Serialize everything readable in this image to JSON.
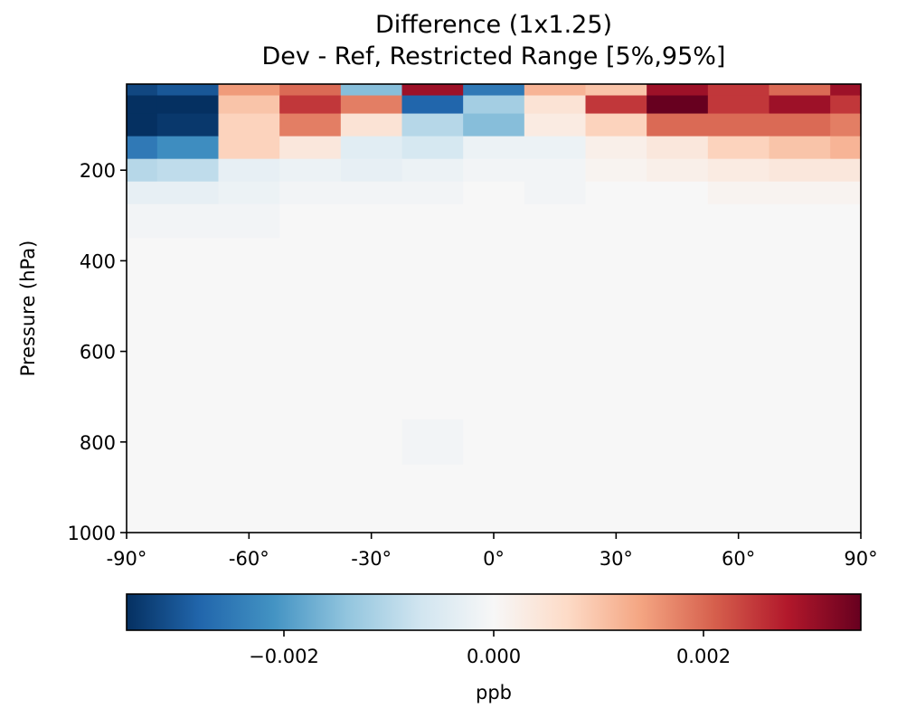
{
  "chart_data": {
    "type": "heatmap",
    "title_line1": "Difference (1x1.25)",
    "title_line2": "Dev - Ref, Restricted Range [5%,95%]",
    "ylabel": "Pressure (hPa)",
    "x_ticks": [
      {
        "value": -90,
        "label": "-90°"
      },
      {
        "value": -60,
        "label": "-60°"
      },
      {
        "value": -30,
        "label": "-30°"
      },
      {
        "value": 0,
        "label": "0°"
      },
      {
        "value": 30,
        "label": "30°"
      },
      {
        "value": 60,
        "label": "60°"
      },
      {
        "value": 90,
        "label": "90°"
      }
    ],
    "y_ticks": [
      {
        "value": 200,
        "label": "200"
      },
      {
        "value": 400,
        "label": "400"
      },
      {
        "value": 600,
        "label": "600"
      },
      {
        "value": 800,
        "label": "800"
      },
      {
        "value": 1000,
        "label": "1000"
      }
    ],
    "xlim": [
      -90,
      90
    ],
    "ylim_pressure_top_bottom": [
      10,
      1000
    ],
    "latitudes": [
      -90,
      -75,
      -60,
      -45,
      -30,
      -15,
      0,
      15,
      30,
      45,
      60,
      75,
      90
    ],
    "pressure_levels": [
      20,
      50,
      100,
      150,
      200,
      250,
      300,
      400,
      500,
      600,
      700,
      800,
      900,
      1000
    ],
    "values_ppb": [
      [
        -0.0032,
        -0.003,
        0.0015,
        0.002,
        -0.0015,
        0.003,
        -0.0025,
        0.0012,
        0.001,
        0.003,
        0.0025,
        0.002,
        0.003
      ],
      [
        -0.0035,
        -0.0035,
        0.001,
        0.0025,
        0.0018,
        -0.0028,
        -0.0012,
        0.0005,
        0.0025,
        0.0035,
        0.0025,
        0.003,
        0.0025
      ],
      [
        -0.0035,
        -0.0034,
        0.0008,
        0.0018,
        0.0005,
        -0.001,
        -0.0015,
        0.0003,
        0.0008,
        0.002,
        0.002,
        0.002,
        0.0018
      ],
      [
        -0.0025,
        -0.0022,
        0.0008,
        0.0004,
        -0.0004,
        -0.0006,
        -0.0002,
        -0.0002,
        0.0002,
        0.0004,
        0.0008,
        0.001,
        0.0012
      ],
      [
        -0.001,
        -0.0009,
        -0.0003,
        -0.0002,
        -0.0003,
        -0.0002,
        -0.0001,
        -0.0001,
        0.0001,
        0.0002,
        0.0003,
        0.0004,
        0.0004
      ],
      [
        -0.0003,
        -0.0003,
        -0.0002,
        -0.0001,
        -0.0001,
        -0.0001,
        0.0,
        -0.0001,
        0.0,
        0.0,
        0.0001,
        0.0001,
        0.0001
      ],
      [
        -0.0001,
        -0.0001,
        -0.0001,
        0.0,
        0.0,
        0.0,
        0.0,
        0.0,
        0.0,
        0.0,
        0.0,
        0.0,
        0.0
      ],
      [
        0.0,
        0.0,
        0.0,
        0.0,
        0.0,
        0.0,
        0.0,
        0.0,
        0.0,
        0.0,
        0.0,
        0.0,
        0.0
      ],
      [
        0.0,
        0.0,
        0.0,
        0.0,
        0.0,
        0.0,
        0.0,
        0.0,
        0.0,
        0.0,
        0.0,
        0.0,
        0.0
      ],
      [
        0.0,
        0.0,
        0.0,
        0.0,
        0.0,
        0.0,
        0.0,
        0.0,
        0.0,
        0.0,
        0.0,
        0.0,
        0.0
      ],
      [
        0.0,
        0.0,
        0.0,
        0.0,
        0.0,
        0.0,
        0.0,
        0.0,
        0.0,
        0.0,
        0.0,
        0.0,
        0.0
      ],
      [
        0.0,
        0.0,
        0.0,
        0.0,
        0.0,
        -0.0001,
        0.0,
        0.0,
        0.0,
        0.0,
        0.0,
        0.0,
        0.0
      ],
      [
        0.0,
        0.0,
        0.0,
        0.0,
        0.0,
        0.0,
        0.0,
        0.0,
        0.0,
        0.0,
        0.0,
        0.0,
        0.0
      ],
      [
        0.0,
        0.0,
        0.0,
        0.0,
        0.0,
        0.0,
        0.0,
        0.0,
        0.0,
        0.0,
        0.0,
        0.0,
        0.0
      ]
    ],
    "colorbar": {
      "colormap": "RdBu_r",
      "vmin": -0.0035,
      "vmax": 0.0035,
      "ticks": [
        {
          "value": -0.002,
          "label": "−0.002"
        },
        {
          "value": 0.0,
          "label": "0.000"
        },
        {
          "value": 0.002,
          "label": "0.002"
        }
      ],
      "label": "ppb",
      "colors": [
        "#053061",
        "#2166ac",
        "#4393c3",
        "#92c5de",
        "#d1e5f0",
        "#f7f7f7",
        "#fddbc7",
        "#f4a582",
        "#d6604d",
        "#b2182b",
        "#67001f"
      ]
    }
  }
}
